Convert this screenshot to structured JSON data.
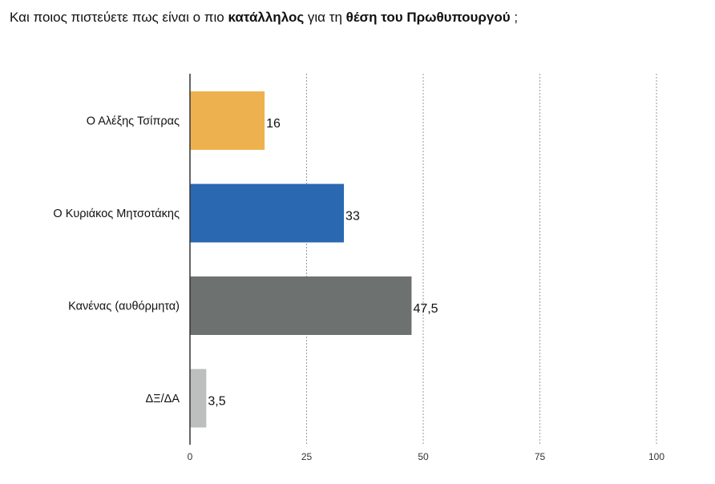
{
  "title": {
    "part1": "Και ποιος πιστεύετε πως είναι ο πιο ",
    "bold1": "κατάλληλος",
    "part2": " για τη ",
    "bold2": "θέση του Πρωθυπουργού",
    "part3": " ;"
  },
  "chart_data": {
    "type": "bar",
    "orientation": "horizontal",
    "title": "Και ποιος πιστεύετε πως είναι ο πιο κατάλληλος για τη θέση του Πρωθυπουργού ;",
    "categories": [
      "Ο Αλέξης Τσίπρας",
      "Ο Κυριάκος Μητσοτάκης",
      "Κανένας (αυθόρμητα)",
      "ΔΞ/ΔΑ"
    ],
    "values": [
      16,
      33,
      47.5,
      3.5
    ],
    "value_labels": [
      "16",
      "33",
      "47,5",
      "3,5"
    ],
    "colors": [
      "#EDB24F",
      "#2A68B2",
      "#6D7270",
      "#BDBFBE"
    ],
    "xlim": [
      0,
      100
    ],
    "xticks": [
      0,
      25,
      50,
      75,
      100
    ],
    "xtick_labels": [
      "0",
      "25",
      "50",
      "75",
      "100"
    ],
    "grid": true,
    "legend": "none"
  }
}
